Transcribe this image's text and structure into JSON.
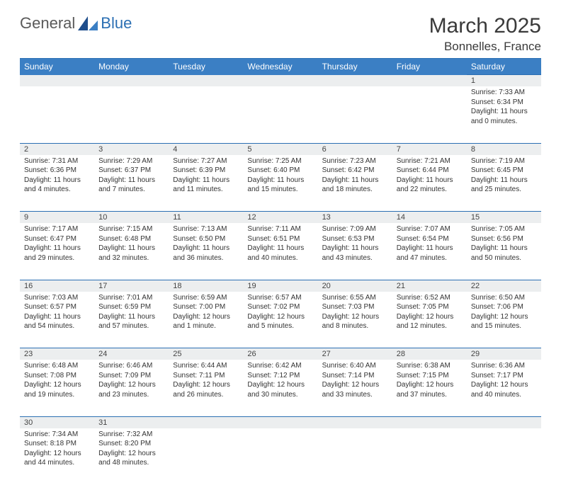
{
  "brand": {
    "part1": "General",
    "part2": "Blue"
  },
  "title": "March 2025",
  "location": "Bonnelles, France",
  "colors": {
    "header_bg": "#3b7fc4",
    "header_fg": "#ffffff",
    "rule": "#2b6fb3",
    "daynum_bg": "#eceeef",
    "text": "#333333"
  },
  "day_headers": [
    "Sunday",
    "Monday",
    "Tuesday",
    "Wednesday",
    "Thursday",
    "Friday",
    "Saturday"
  ],
  "weeks": [
    [
      {
        "n": "",
        "sunrise": "",
        "sunset": "",
        "daylight": ""
      },
      {
        "n": "",
        "sunrise": "",
        "sunset": "",
        "daylight": ""
      },
      {
        "n": "",
        "sunrise": "",
        "sunset": "",
        "daylight": ""
      },
      {
        "n": "",
        "sunrise": "",
        "sunset": "",
        "daylight": ""
      },
      {
        "n": "",
        "sunrise": "",
        "sunset": "",
        "daylight": ""
      },
      {
        "n": "",
        "sunrise": "",
        "sunset": "",
        "daylight": ""
      },
      {
        "n": "1",
        "sunrise": "Sunrise: 7:33 AM",
        "sunset": "Sunset: 6:34 PM",
        "daylight": "Daylight: 11 hours and 0 minutes."
      }
    ],
    [
      {
        "n": "2",
        "sunrise": "Sunrise: 7:31 AM",
        "sunset": "Sunset: 6:36 PM",
        "daylight": "Daylight: 11 hours and 4 minutes."
      },
      {
        "n": "3",
        "sunrise": "Sunrise: 7:29 AM",
        "sunset": "Sunset: 6:37 PM",
        "daylight": "Daylight: 11 hours and 7 minutes."
      },
      {
        "n": "4",
        "sunrise": "Sunrise: 7:27 AM",
        "sunset": "Sunset: 6:39 PM",
        "daylight": "Daylight: 11 hours and 11 minutes."
      },
      {
        "n": "5",
        "sunrise": "Sunrise: 7:25 AM",
        "sunset": "Sunset: 6:40 PM",
        "daylight": "Daylight: 11 hours and 15 minutes."
      },
      {
        "n": "6",
        "sunrise": "Sunrise: 7:23 AM",
        "sunset": "Sunset: 6:42 PM",
        "daylight": "Daylight: 11 hours and 18 minutes."
      },
      {
        "n": "7",
        "sunrise": "Sunrise: 7:21 AM",
        "sunset": "Sunset: 6:44 PM",
        "daylight": "Daylight: 11 hours and 22 minutes."
      },
      {
        "n": "8",
        "sunrise": "Sunrise: 7:19 AM",
        "sunset": "Sunset: 6:45 PM",
        "daylight": "Daylight: 11 hours and 25 minutes."
      }
    ],
    [
      {
        "n": "9",
        "sunrise": "Sunrise: 7:17 AM",
        "sunset": "Sunset: 6:47 PM",
        "daylight": "Daylight: 11 hours and 29 minutes."
      },
      {
        "n": "10",
        "sunrise": "Sunrise: 7:15 AM",
        "sunset": "Sunset: 6:48 PM",
        "daylight": "Daylight: 11 hours and 32 minutes."
      },
      {
        "n": "11",
        "sunrise": "Sunrise: 7:13 AM",
        "sunset": "Sunset: 6:50 PM",
        "daylight": "Daylight: 11 hours and 36 minutes."
      },
      {
        "n": "12",
        "sunrise": "Sunrise: 7:11 AM",
        "sunset": "Sunset: 6:51 PM",
        "daylight": "Daylight: 11 hours and 40 minutes."
      },
      {
        "n": "13",
        "sunrise": "Sunrise: 7:09 AM",
        "sunset": "Sunset: 6:53 PM",
        "daylight": "Daylight: 11 hours and 43 minutes."
      },
      {
        "n": "14",
        "sunrise": "Sunrise: 7:07 AM",
        "sunset": "Sunset: 6:54 PM",
        "daylight": "Daylight: 11 hours and 47 minutes."
      },
      {
        "n": "15",
        "sunrise": "Sunrise: 7:05 AM",
        "sunset": "Sunset: 6:56 PM",
        "daylight": "Daylight: 11 hours and 50 minutes."
      }
    ],
    [
      {
        "n": "16",
        "sunrise": "Sunrise: 7:03 AM",
        "sunset": "Sunset: 6:57 PM",
        "daylight": "Daylight: 11 hours and 54 minutes."
      },
      {
        "n": "17",
        "sunrise": "Sunrise: 7:01 AM",
        "sunset": "Sunset: 6:59 PM",
        "daylight": "Daylight: 11 hours and 57 minutes."
      },
      {
        "n": "18",
        "sunrise": "Sunrise: 6:59 AM",
        "sunset": "Sunset: 7:00 PM",
        "daylight": "Daylight: 12 hours and 1 minute."
      },
      {
        "n": "19",
        "sunrise": "Sunrise: 6:57 AM",
        "sunset": "Sunset: 7:02 PM",
        "daylight": "Daylight: 12 hours and 5 minutes."
      },
      {
        "n": "20",
        "sunrise": "Sunrise: 6:55 AM",
        "sunset": "Sunset: 7:03 PM",
        "daylight": "Daylight: 12 hours and 8 minutes."
      },
      {
        "n": "21",
        "sunrise": "Sunrise: 6:52 AM",
        "sunset": "Sunset: 7:05 PM",
        "daylight": "Daylight: 12 hours and 12 minutes."
      },
      {
        "n": "22",
        "sunrise": "Sunrise: 6:50 AM",
        "sunset": "Sunset: 7:06 PM",
        "daylight": "Daylight: 12 hours and 15 minutes."
      }
    ],
    [
      {
        "n": "23",
        "sunrise": "Sunrise: 6:48 AM",
        "sunset": "Sunset: 7:08 PM",
        "daylight": "Daylight: 12 hours and 19 minutes."
      },
      {
        "n": "24",
        "sunrise": "Sunrise: 6:46 AM",
        "sunset": "Sunset: 7:09 PM",
        "daylight": "Daylight: 12 hours and 23 minutes."
      },
      {
        "n": "25",
        "sunrise": "Sunrise: 6:44 AM",
        "sunset": "Sunset: 7:11 PM",
        "daylight": "Daylight: 12 hours and 26 minutes."
      },
      {
        "n": "26",
        "sunrise": "Sunrise: 6:42 AM",
        "sunset": "Sunset: 7:12 PM",
        "daylight": "Daylight: 12 hours and 30 minutes."
      },
      {
        "n": "27",
        "sunrise": "Sunrise: 6:40 AM",
        "sunset": "Sunset: 7:14 PM",
        "daylight": "Daylight: 12 hours and 33 minutes."
      },
      {
        "n": "28",
        "sunrise": "Sunrise: 6:38 AM",
        "sunset": "Sunset: 7:15 PM",
        "daylight": "Daylight: 12 hours and 37 minutes."
      },
      {
        "n": "29",
        "sunrise": "Sunrise: 6:36 AM",
        "sunset": "Sunset: 7:17 PM",
        "daylight": "Daylight: 12 hours and 40 minutes."
      }
    ],
    [
      {
        "n": "30",
        "sunrise": "Sunrise: 7:34 AM",
        "sunset": "Sunset: 8:18 PM",
        "daylight": "Daylight: 12 hours and 44 minutes."
      },
      {
        "n": "31",
        "sunrise": "Sunrise: 7:32 AM",
        "sunset": "Sunset: 8:20 PM",
        "daylight": "Daylight: 12 hours and 48 minutes."
      },
      {
        "n": "",
        "sunrise": "",
        "sunset": "",
        "daylight": ""
      },
      {
        "n": "",
        "sunrise": "",
        "sunset": "",
        "daylight": ""
      },
      {
        "n": "",
        "sunrise": "",
        "sunset": "",
        "daylight": ""
      },
      {
        "n": "",
        "sunrise": "",
        "sunset": "",
        "daylight": ""
      },
      {
        "n": "",
        "sunrise": "",
        "sunset": "",
        "daylight": ""
      }
    ]
  ]
}
